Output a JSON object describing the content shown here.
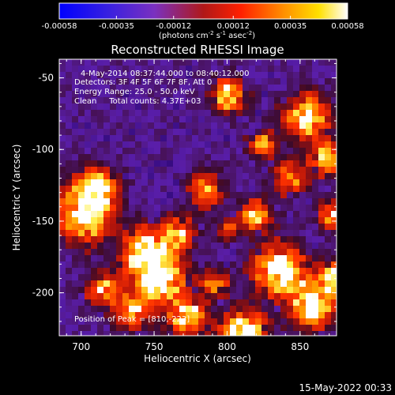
{
  "chart_data": {
    "type": "heatmap",
    "title": "Reconstructed RHESSI Image",
    "xlabel": "Heliocentric X (arcsec)",
    "ylabel": "Heliocentric Y (arcsec)",
    "xlim": [
      685,
      875
    ],
    "ylim": [
      -230,
      -37
    ],
    "x_ticks": [
      "700",
      "750",
      "800",
      "850"
    ],
    "x_tick_values": [
      700,
      750,
      800,
      850
    ],
    "y_ticks": [
      "-50",
      "-100",
      "-150",
      "-200"
    ],
    "y_tick_values": [
      -50,
      -100,
      -150,
      -200
    ],
    "colorbar": {
      "ticks": [
        "-0.00058",
        "-0.00035",
        "-0.00012",
        "0.00012",
        "0.00035",
        "0.00058"
      ],
      "tick_values": [
        -0.00058,
        -0.00035,
        -0.00012,
        0.00012,
        0.00035,
        0.00058
      ],
      "label_main": "(photons cm",
      "label_exp1": "-2",
      "label_mid": " s",
      "label_exp2": "-1",
      "label_end": " asec",
      "label_exp3": "-2",
      "label_close": ")",
      "colormap": "rhessi-blue-purple-red-yellow-white"
    },
    "annotations": {
      "time_range": "4-May-2014 08:37:44.000 to 08:40:12.000",
      "detectors": "Detectors: 3F 4F 5F 6F 7F 8F, Att 0",
      "energy": "Energy Range: 25.0 - 50.0 keV",
      "clean": "Clean     Total counts: 4.37E+03",
      "peak": "Position of Peak = [810,-223]"
    },
    "peak_position": [
      810,
      -223
    ],
    "value_range": [
      -0.00058,
      0.00058
    ]
  },
  "footer": {
    "timestamp": "15-May-2022 00:33"
  }
}
